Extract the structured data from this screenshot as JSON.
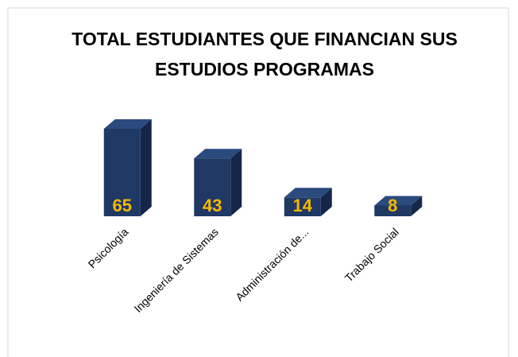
{
  "chart_data": {
    "type": "bar3d",
    "title": "TOTAL ESTUDIANTES QUE FINANCIAN SUS ESTUDIOS PROGRAMAS",
    "categories": [
      "Psicología",
      "Ingeniería de Sistemas",
      "Administración de...",
      "Trabajo Social"
    ],
    "values": [
      65,
      43,
      14,
      8
    ],
    "color": "#1f3864",
    "label_color": "#f5b800"
  }
}
